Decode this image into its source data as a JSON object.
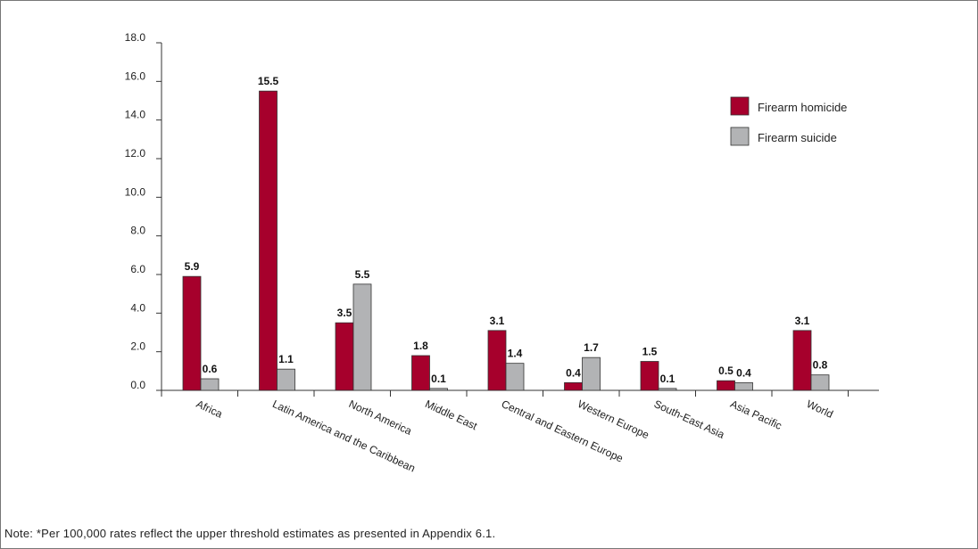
{
  "chart_data": {
    "type": "bar",
    "categories": [
      "Africa",
      "Latin America and the Caribbean",
      "North America",
      "Middle East",
      "Central and Eastern Europe",
      "Western Europe",
      "South-East Asia",
      "Asia Pacific",
      "World"
    ],
    "series": [
      {
        "name": "Firearm homicide",
        "color": "#a6002c",
        "values": [
          5.9,
          15.5,
          3.5,
          1.8,
          3.1,
          0.4,
          1.5,
          0.5,
          3.1
        ]
      },
      {
        "name": "Firearm suicide",
        "color": "#b2b3b5",
        "values": [
          0.6,
          1.1,
          5.5,
          0.1,
          1.4,
          1.7,
          0.1,
          0.4,
          0.8
        ]
      }
    ],
    "data_labels": {
      "homicide": [
        "5.9",
        "15.5",
        "3.5",
        "1.8",
        "3.1",
        "0.4",
        "1.5",
        "0.5",
        "3.1"
      ],
      "suicide": [
        "0.6",
        "1.1",
        "5.5",
        "0.1",
        "1.4",
        "1.7",
        "0.1",
        "0.4",
        "0.8"
      ]
    },
    "yticks": [
      "0.0",
      "2.0",
      "4.0",
      "6.0",
      "8.0",
      "10.0",
      "12.0",
      "14.0",
      "16.0",
      "18.0"
    ],
    "ylim": [
      0,
      18
    ],
    "grid": false,
    "legend_position": "top-right",
    "title": "",
    "xlabel": "",
    "ylabel": ""
  },
  "note": "Note: *Per 100,000 rates reflect the upper threshold estimates as presented in Appendix 6.1."
}
